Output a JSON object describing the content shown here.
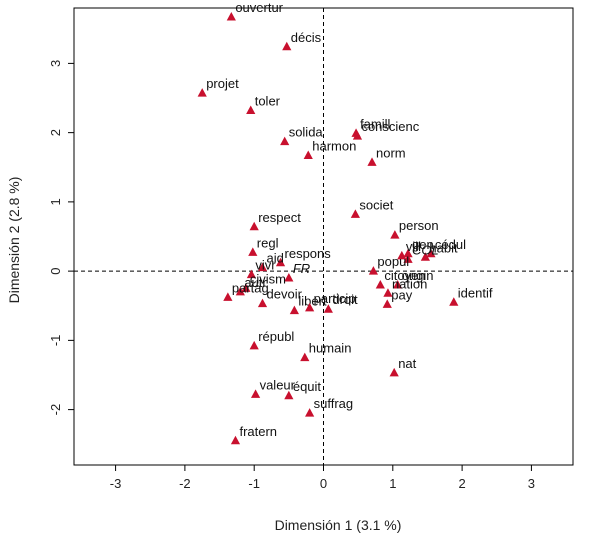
{
  "chart_data": {
    "type": "scatter",
    "xlabel": "Dimensión 1 (3.1 %)",
    "ylabel": "Dimensión 2 (2.8 %)",
    "xlim": [
      -3.6,
      3.6
    ],
    "ylim": [
      -2.8,
      3.8
    ],
    "xticks": [
      -3,
      -2,
      -1,
      0,
      1,
      2,
      3
    ],
    "yticks": [
      -2,
      -1,
      0,
      1,
      2,
      3
    ],
    "grid": false,
    "reference_lines": [
      {
        "axis": "x",
        "value": 0
      },
      {
        "axis": "y",
        "value": 0
      }
    ],
    "marker_color": "#c8102e",
    "marker": "triangle",
    "points": [
      {
        "label": "ouvertur",
        "x": -1.33,
        "y": 3.67
      },
      {
        "label": "décis",
        "x": -0.53,
        "y": 3.24
      },
      {
        "label": "projet",
        "x": -1.75,
        "y": 2.57
      },
      {
        "label": "toler",
        "x": -1.05,
        "y": 2.32
      },
      {
        "label": "famill",
        "x": 0.47,
        "y": 1.99
      },
      {
        "label": "conscienc",
        "x": 0.49,
        "y": 1.95
      },
      {
        "label": "solida",
        "x": -0.56,
        "y": 1.87
      },
      {
        "label": "harmon",
        "x": -0.22,
        "y": 1.67
      },
      {
        "label": "norm",
        "x": 0.7,
        "y": 1.57
      },
      {
        "label": "societ",
        "x": 0.46,
        "y": 0.82
      },
      {
        "label": "respect",
        "x": -1.0,
        "y": 0.64
      },
      {
        "label": "person",
        "x": 1.03,
        "y": 0.52
      },
      {
        "label": "gen",
        "x": 1.22,
        "y": 0.25
      },
      {
        "label": "cédul",
        "x": 1.55,
        "y": 0.25
      },
      {
        "label": "regl",
        "x": -1.02,
        "y": 0.27
      },
      {
        "label": "vill",
        "x": 1.13,
        "y": 0.22
      },
      {
        "label": "habit",
        "x": 1.47,
        "y": 0.2
      },
      {
        "label": "respons",
        "x": -0.62,
        "y": 0.12
      },
      {
        "label": "COL",
        "x": 1.22,
        "y": 0.17,
        "italic": true
      },
      {
        "label": "aid",
        "x": -0.88,
        "y": 0.05
      },
      {
        "label": "popul",
        "x": 0.72,
        "y": 0.0
      },
      {
        "label": "vivr",
        "x": -1.04,
        "y": -0.05
      },
      {
        "label": "FR",
        "x": -0.5,
        "y": -0.1,
        "italic": true
      },
      {
        "label": "citoyen",
        "x": 0.82,
        "y": -0.2
      },
      {
        "label": "origin",
        "x": 1.07,
        "y": -0.2
      },
      {
        "label": "civism",
        "x": -1.12,
        "y": -0.25
      },
      {
        "label": "autr",
        "x": -1.2,
        "y": -0.3
      },
      {
        "label": "nation",
        "x": 0.93,
        "y": -0.32
      },
      {
        "label": "identif",
        "x": 1.88,
        "y": -0.45
      },
      {
        "label": "partag",
        "x": -1.38,
        "y": -0.38
      },
      {
        "label": "devoir",
        "x": -0.88,
        "y": -0.47
      },
      {
        "label": "pay",
        "x": 0.92,
        "y": -0.48
      },
      {
        "label": "droit",
        "x": 0.07,
        "y": -0.55
      },
      {
        "label": "libert",
        "x": -0.42,
        "y": -0.57
      },
      {
        "label": "particip",
        "x": -0.2,
        "y": -0.53
      },
      {
        "label": "républ",
        "x": -1.0,
        "y": -1.08
      },
      {
        "label": "humain",
        "x": -0.27,
        "y": -1.25
      },
      {
        "label": "nat",
        "x": 1.02,
        "y": -1.47
      },
      {
        "label": "valeur",
        "x": -0.98,
        "y": -1.78
      },
      {
        "label": "équit",
        "x": -0.5,
        "y": -1.8
      },
      {
        "label": "suffrag",
        "x": -0.2,
        "y": -2.05
      },
      {
        "label": "fratern",
        "x": -1.27,
        "y": -2.45
      }
    ]
  }
}
